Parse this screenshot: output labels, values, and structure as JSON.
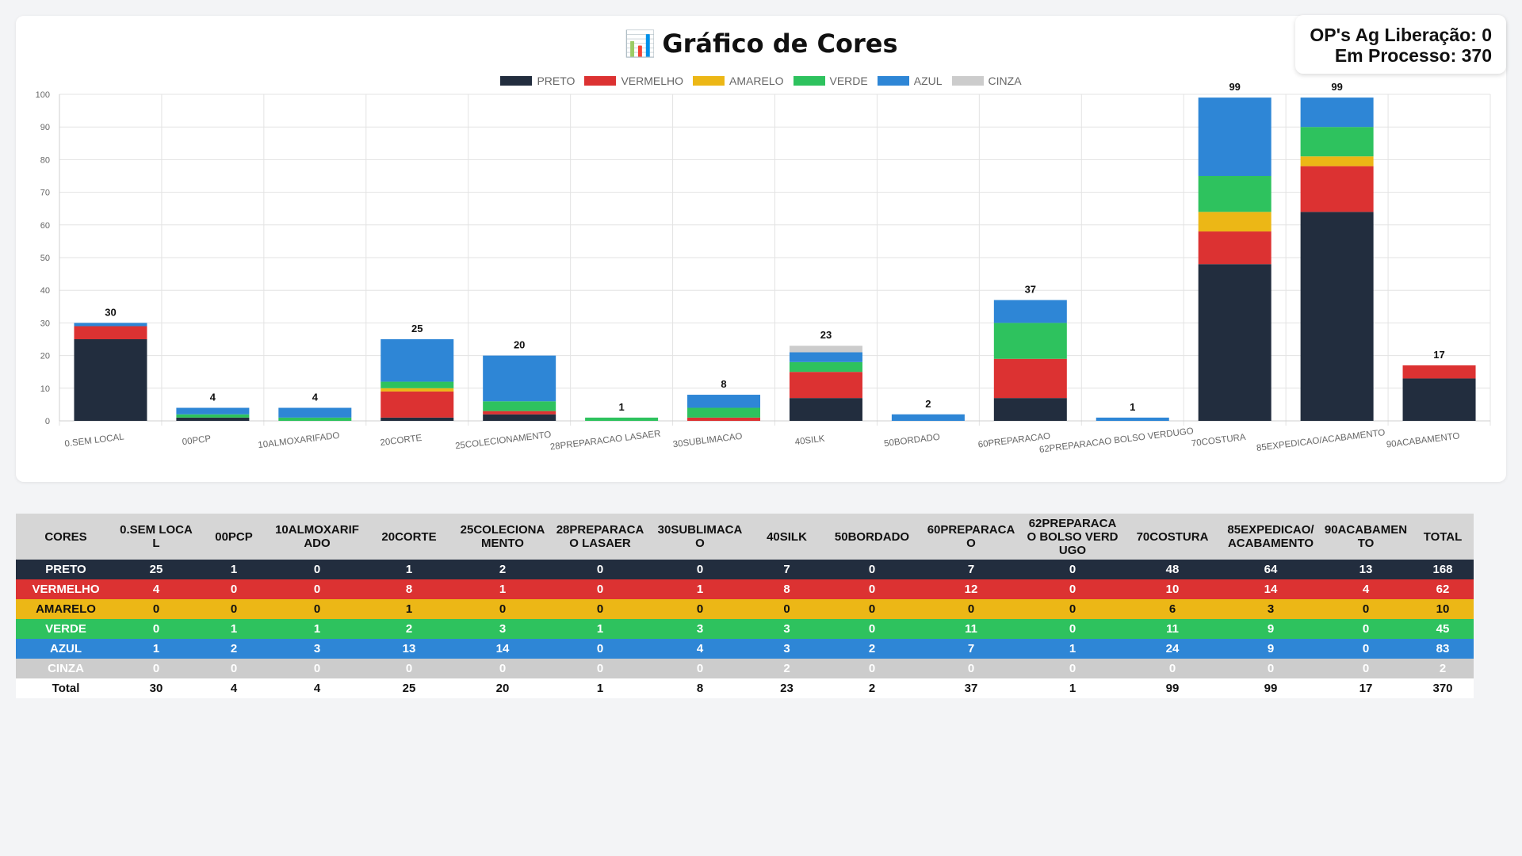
{
  "header": {
    "icon": "📊",
    "title": "Gráfico de Cores"
  },
  "info": {
    "line1": "OP's Ag Liberação: 0",
    "line2": "Em Processo: 370"
  },
  "colors": {
    "PRETO": "#222d3e",
    "VERMELHO": "#dc3232",
    "AMARELO": "#ecb716",
    "VERDE": "#2ec25e",
    "AZUL": "#2e86d6",
    "CINZA": "#cccccc"
  },
  "chart_data": {
    "type": "bar",
    "stacked": true,
    "title": "Gráfico de Cores",
    "xlabel": "",
    "ylabel": "",
    "ylim": [
      0,
      100
    ],
    "yticks": [
      0,
      10,
      20,
      30,
      40,
      50,
      60,
      70,
      80,
      90,
      100
    ],
    "grid": true,
    "legend": "top",
    "categories": [
      "0.SEM LOCAL",
      "00PCP",
      "10ALMOXARIFADO",
      "20CORTE",
      "25COLECIONAMENTO",
      "28PREPARACAO LASAER",
      "30SUBLIMACAO",
      "40SILK",
      "50BORDADO",
      "60PREPARACAO",
      "62PREPARACAO BOLSO VERDUGO",
      "70COSTURA",
      "85EXPEDICAO/ACABAMENTO",
      "90ACABAMENTO"
    ],
    "series": [
      {
        "name": "PRETO",
        "values": [
          25,
          1,
          0,
          1,
          2,
          0,
          0,
          7,
          0,
          7,
          0,
          48,
          64,
          13
        ]
      },
      {
        "name": "VERMELHO",
        "values": [
          4,
          0,
          0,
          8,
          1,
          0,
          1,
          8,
          0,
          12,
          0,
          10,
          14,
          4
        ]
      },
      {
        "name": "AMARELO",
        "values": [
          0,
          0,
          0,
          1,
          0,
          0,
          0,
          0,
          0,
          0,
          0,
          6,
          3,
          0
        ]
      },
      {
        "name": "VERDE",
        "values": [
          0,
          1,
          1,
          2,
          3,
          1,
          3,
          3,
          0,
          11,
          0,
          11,
          9,
          0
        ]
      },
      {
        "name": "AZUL",
        "values": [
          1,
          2,
          3,
          13,
          14,
          0,
          4,
          3,
          2,
          7,
          1,
          24,
          9,
          0
        ]
      },
      {
        "name": "CINZA",
        "values": [
          0,
          0,
          0,
          0,
          0,
          0,
          0,
          2,
          0,
          0,
          0,
          0,
          0,
          0
        ]
      }
    ],
    "totals": [
      30,
      4,
      4,
      25,
      20,
      1,
      8,
      23,
      2,
      37,
      1,
      99,
      99,
      17
    ]
  },
  "table": {
    "corner": "CORES",
    "headers": [
      "0.SEM LOCAL",
      "00PCP",
      "10ALMOXARIFADO",
      "20CORTE",
      "25COLECIONAMENTO",
      "28PREPARACAO LASAER",
      "30SUBLIMACAO",
      "40SILK",
      "50BORDADO",
      "60PREPARACAO",
      "62PREPARACAO BOLSO VERDUGO",
      "70COSTURA",
      "85EXPEDICAO/ACABAMENTO",
      "90ACABAMENTO"
    ],
    "total_header": "TOTAL",
    "rows": [
      {
        "label": "PRETO",
        "values": [
          25,
          1,
          0,
          1,
          2,
          0,
          0,
          7,
          0,
          7,
          0,
          48,
          64,
          13
        ],
        "total": 168
      },
      {
        "label": "VERMELHO",
        "values": [
          4,
          0,
          0,
          8,
          1,
          0,
          1,
          8,
          0,
          12,
          0,
          10,
          14,
          4
        ],
        "total": 62
      },
      {
        "label": "AMARELO",
        "values": [
          0,
          0,
          0,
          1,
          0,
          0,
          0,
          0,
          0,
          0,
          0,
          6,
          3,
          0
        ],
        "total": 10
      },
      {
        "label": "VERDE",
        "values": [
          0,
          1,
          1,
          2,
          3,
          1,
          3,
          3,
          0,
          11,
          0,
          11,
          9,
          0
        ],
        "total": 45
      },
      {
        "label": "AZUL",
        "values": [
          1,
          2,
          3,
          13,
          14,
          0,
          4,
          3,
          2,
          7,
          1,
          24,
          9,
          0
        ],
        "total": 83
      },
      {
        "label": "CINZA",
        "values": [
          0,
          0,
          0,
          0,
          0,
          0,
          0,
          2,
          0,
          0,
          0,
          0,
          0,
          0
        ],
        "total": 2
      }
    ],
    "total_row": {
      "label": "Total",
      "values": [
        30,
        4,
        4,
        25,
        20,
        1,
        8,
        23,
        2,
        37,
        1,
        99,
        99,
        17
      ],
      "total": 370
    }
  }
}
